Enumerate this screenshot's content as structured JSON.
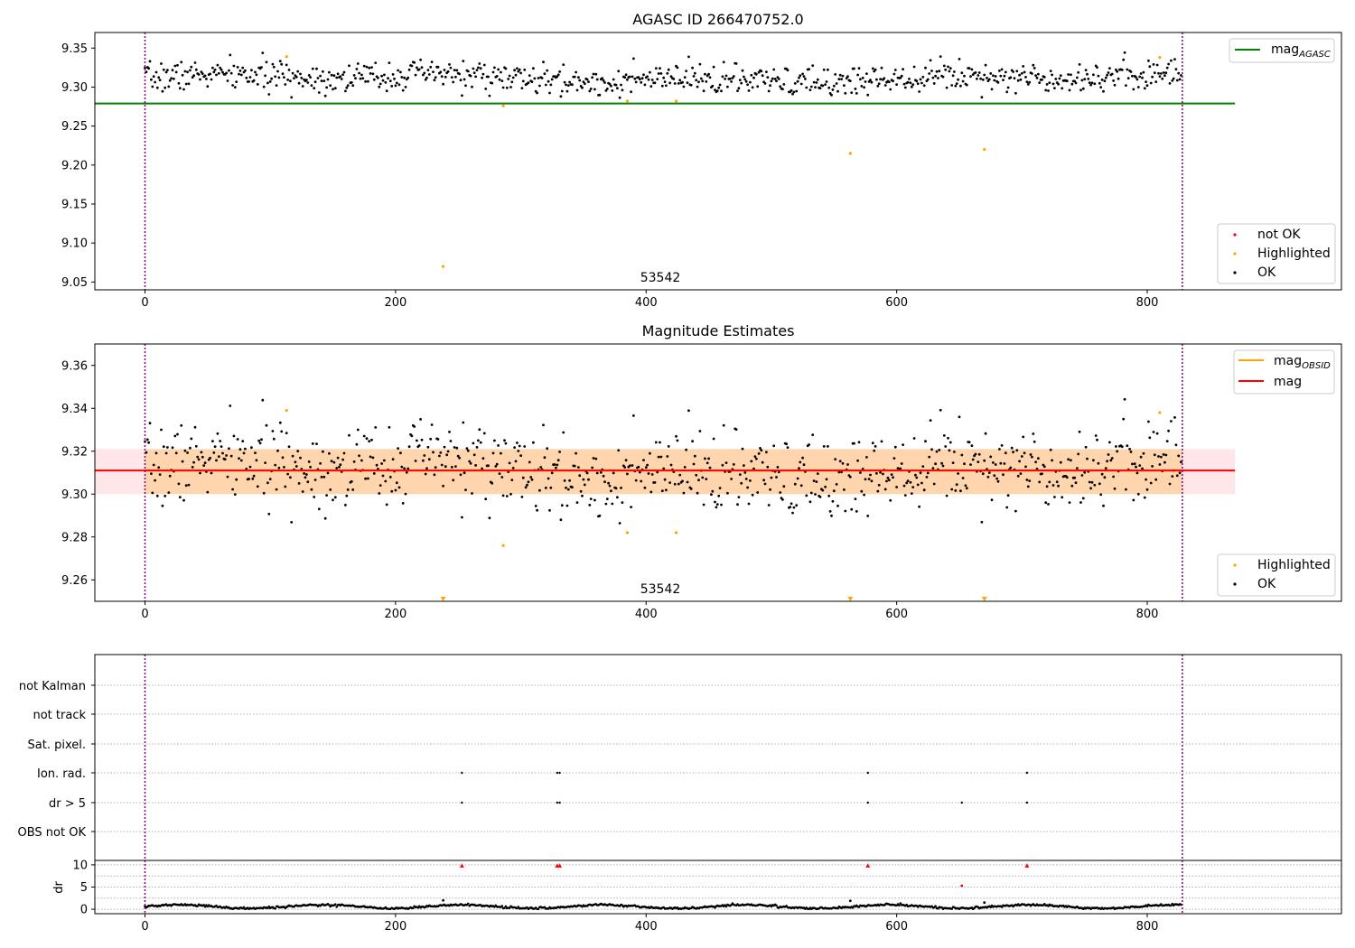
{
  "chart_data": [
    {
      "type": "scatter",
      "title": "AGASC ID 266470752.0",
      "xlabel": "",
      "ylabel": "",
      "xlim": [
        -40,
        955
      ],
      "ylim": [
        9.04,
        9.37
      ],
      "xticks": [
        "0",
        "200",
        "400",
        "600",
        "800"
      ],
      "yticks": [
        "9.05",
        "9.10",
        "9.15",
        "9.20",
        "9.25",
        "9.30",
        "9.35"
      ],
      "annotation": "53542",
      "obs_boundaries": [
        0,
        828
      ],
      "mag_agasc": 9.279,
      "mag_agasc_range": [
        -40,
        870
      ],
      "ok_band": {
        "center": 9.311,
        "spread": 0.011,
        "n_points": 828
      },
      "highlighted": [
        {
          "x": 113,
          "y": 9.339
        },
        {
          "x": 238,
          "y": 9.07
        },
        {
          "x": 286,
          "y": 9.276
        },
        {
          "x": 385,
          "y": 9.282
        },
        {
          "x": 424,
          "y": 9.282
        },
        {
          "x": 563,
          "y": 9.215
        },
        {
          "x": 670,
          "y": 9.22
        },
        {
          "x": 810,
          "y": 9.338
        }
      ],
      "legend_top": {
        "label_main": "mag",
        "label_sub": "AGASC",
        "color": "#008000"
      },
      "legend_bottom": [
        {
          "label": "not OK",
          "color": "#ff0000"
        },
        {
          "label": "Highlighted",
          "color": "#ffa500"
        },
        {
          "label": "OK",
          "color": "#000000"
        }
      ]
    },
    {
      "type": "scatter",
      "title": "Magnitude Estimates",
      "xlim": [
        -40,
        955
      ],
      "ylim": [
        9.25,
        9.37
      ],
      "xticks": [
        "0",
        "200",
        "400",
        "600",
        "800"
      ],
      "yticks": [
        "9.26",
        "9.28",
        "9.30",
        "9.32",
        "9.34",
        "9.36"
      ],
      "annotation": "53542",
      "obs_boundaries": [
        0,
        828
      ],
      "mag": 9.311,
      "mag_obsid": 9.311,
      "mag_band": [
        9.3,
        9.321
      ],
      "line_range": [
        -40,
        870
      ],
      "highlighted": [
        {
          "x": 113,
          "y": 9.339
        },
        {
          "x": 286,
          "y": 9.276
        },
        {
          "x": 385,
          "y": 9.282
        },
        {
          "x": 424,
          "y": 9.282
        },
        {
          "x": 810,
          "y": 9.338
        }
      ],
      "off_scale_markers": [
        238,
        563,
        670
      ],
      "legend_top": [
        {
          "label_main": "mag",
          "label_sub": "OBSID",
          "color": "#ffa500"
        },
        {
          "label_main": "mag",
          "label_sub": "",
          "color": "#ff0000"
        }
      ],
      "legend_bottom": [
        {
          "label": "Highlighted",
          "color": "#ffa500"
        },
        {
          "label": "OK",
          "color": "#000000"
        }
      ]
    },
    {
      "type": "scatter",
      "title": "",
      "xlim": [
        -40,
        955
      ],
      "categories": [
        "not Kalman",
        "not track",
        "Sat. pixel.",
        "Ion. rad.",
        "dr > 5",
        "OBS not OK"
      ],
      "flag_events": {
        "Ion. rad.": [
          253,
          329,
          331,
          577,
          704
        ],
        "dr > 5": [
          253,
          329,
          331,
          577,
          652,
          704
        ]
      },
      "obs_boundaries": [
        0,
        828
      ]
    },
    {
      "type": "scatter",
      "xlim": [
        -40,
        955
      ],
      "ylim": [
        -1,
        11
      ],
      "ylabel": "dr",
      "xticks": [
        "0",
        "200",
        "400",
        "600",
        "800"
      ],
      "yticks": [
        "0",
        "5",
        "10"
      ],
      "capped_points": [
        {
          "x": 253,
          "y": 9.8
        },
        {
          "x": 329,
          "y": 9.8
        },
        {
          "x": 331,
          "y": 9.8
        },
        {
          "x": 577,
          "y": 9.8
        },
        {
          "x": 704,
          "y": 9.8
        }
      ],
      "outlier_points": [
        {
          "x": 652,
          "y": 5.3
        },
        {
          "x": 238,
          "y": 2.0
        },
        {
          "x": 563,
          "y": 1.9
        },
        {
          "x": 670,
          "y": 1.5
        }
      ],
      "baseline": {
        "mean": 0.6,
        "amplitude": 0.4
      },
      "obs_boundaries": [
        0,
        828
      ]
    }
  ]
}
